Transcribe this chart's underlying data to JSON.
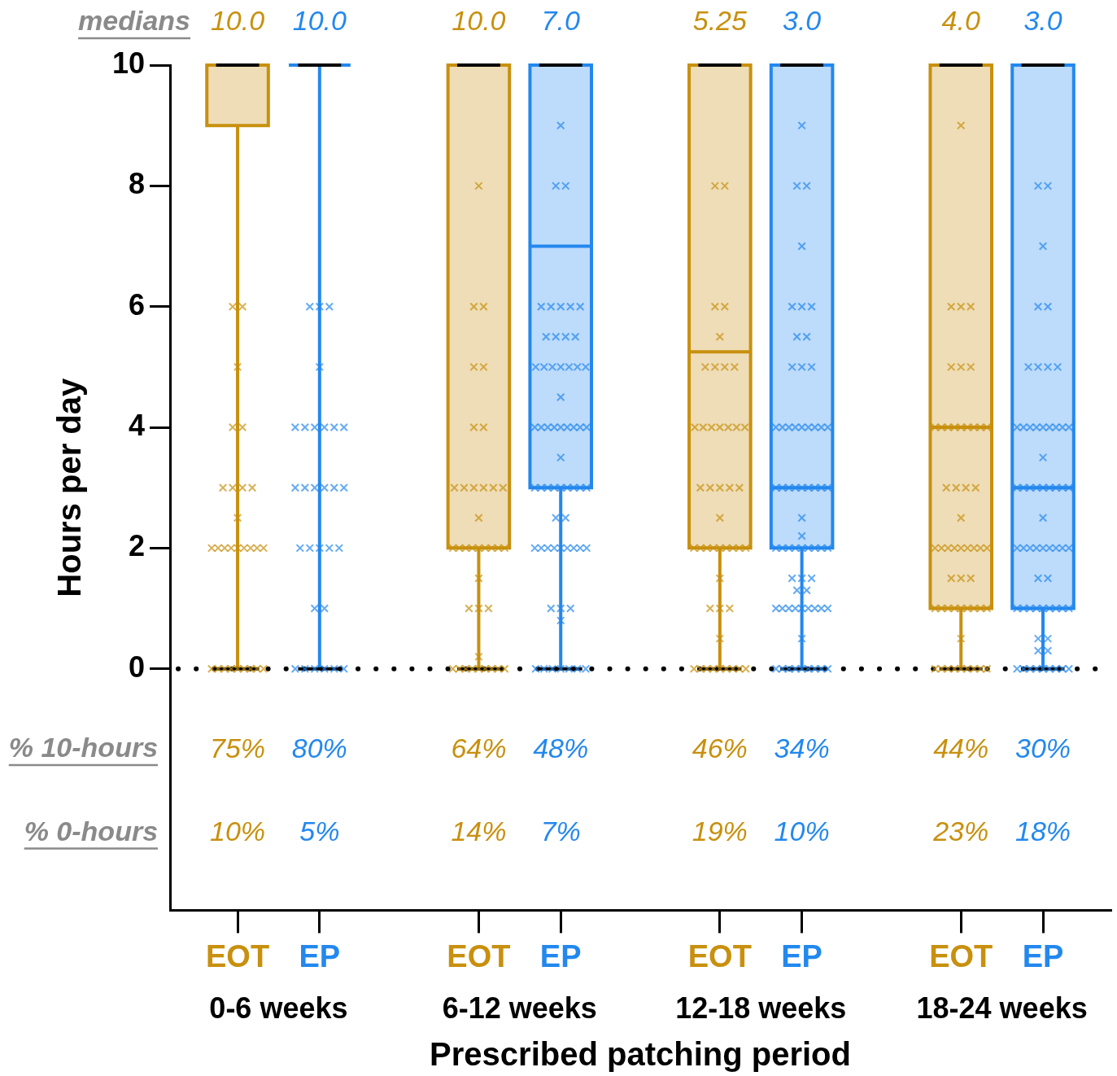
{
  "chart_data": {
    "type": "box",
    "xlabel": "Prescribed patching period",
    "ylabel": "Hours per day",
    "categories": [
      "0-6 weeks",
      "6-12 weeks",
      "12-18 weeks",
      "18-24 weeks"
    ],
    "ylim": [
      -4,
      10
    ],
    "yticks": [
      0,
      2,
      4,
      6,
      8,
      10
    ],
    "marker": "cross",
    "ref_lines": [
      {
        "axis": "y",
        "value": 0,
        "line_style": "dotted",
        "color": "#000000"
      }
    ],
    "series": [
      {
        "name": "EOT",
        "color": "#c8900e",
        "value_labels": [
          "10.0",
          "10.0",
          "5.25",
          "4.0"
        ],
        "boxes": [
          {
            "low": 0,
            "q1": 9,
            "median": 10,
            "q3": 10,
            "high": 10,
            "outliers": [
              6,
              6,
              5,
              4,
              4,
              3,
              3,
              3,
              3,
              2.5,
              2,
              2,
              2,
              2,
              2,
              2,
              2,
              2,
              2,
              0,
              0,
              0,
              0,
              0,
              0,
              0,
              0,
              0
            ]
          },
          {
            "low": 0,
            "q1": 2,
            "median": 10,
            "q3": 10,
            "high": 10,
            "outliers": [
              8,
              6,
              6,
              5,
              5,
              4,
              4,
              3,
              3,
              3,
              3,
              3,
              3,
              2.5,
              2,
              2,
              2,
              2,
              2,
              2,
              2,
              2,
              2,
              1.5,
              1,
              1,
              1,
              0.2,
              0,
              0,
              0,
              0,
              0,
              0,
              0,
              0,
              0
            ]
          },
          {
            "low": 0,
            "q1": 2,
            "median": 5.25,
            "q3": 10,
            "high": 10,
            "outliers": [
              8,
              8,
              6,
              6,
              5.5,
              5,
              5,
              5,
              5,
              4,
              4,
              4,
              4,
              4,
              4,
              4,
              3,
              3,
              3,
              3,
              3,
              2.5,
              2,
              2,
              2,
              2,
              2,
              2,
              2,
              2,
              2,
              1.5,
              1,
              1,
              1,
              0.5,
              0,
              0,
              0,
              0,
              0,
              0,
              0,
              0,
              0
            ]
          },
          {
            "low": 0,
            "q1": 1,
            "median": 4,
            "q3": 10,
            "high": 10,
            "outliers": [
              9,
              6,
              6,
              6,
              5,
              5,
              5,
              4,
              4,
              4,
              4,
              4,
              4,
              4,
              4,
              4,
              3,
              3,
              3,
              3,
              2.5,
              2,
              2,
              2,
              2,
              2,
              2,
              2,
              2,
              2,
              1.5,
              1.5,
              1.5,
              1,
              1,
              1,
              1,
              1,
              1,
              1,
              1,
              1,
              0.5,
              0,
              0,
              0,
              0,
              0,
              0,
              0,
              0,
              0
            ]
          }
        ]
      },
      {
        "name": "EP",
        "color": "#2388ee",
        "value_labels": [
          "10.0",
          "7.0",
          "3.0",
          "3.0"
        ],
        "boxes": [
          {
            "low": 0,
            "q1": 10,
            "median": 10,
            "q3": 10,
            "high": 10,
            "outliers": [
              6,
              6,
              6,
              5,
              4,
              4,
              4,
              4,
              4,
              4,
              3,
              3,
              3,
              3,
              3,
              3,
              2,
              2,
              2,
              2,
              2,
              1,
              1,
              0,
              0,
              0,
              0,
              0,
              0
            ]
          },
          {
            "low": 0,
            "q1": 3,
            "median": 7,
            "q3": 10,
            "high": 10,
            "outliers": [
              9,
              8,
              8,
              6,
              6,
              6,
              6,
              6,
              5.5,
              5.5,
              5.5,
              5.5,
              5,
              5,
              5,
              5,
              5,
              5,
              5,
              4.5,
              4,
              4,
              4,
              4,
              4,
              4,
              4,
              4,
              4,
              3.5,
              3,
              3,
              3,
              3,
              3,
              3,
              3,
              3,
              3,
              2.5,
              2.5,
              2,
              2,
              2,
              2,
              2,
              2,
              2,
              2,
              2,
              1,
              1,
              1,
              0.8,
              0,
              0,
              0,
              0,
              0,
              0,
              0
            ]
          },
          {
            "low": 0,
            "q1": 2,
            "median": 3,
            "q3": 10,
            "high": 10,
            "outliers": [
              9,
              8,
              8,
              7,
              6,
              6,
              6,
              5.5,
              5.5,
              5,
              5,
              5,
              4,
              4,
              4,
              4,
              4,
              4,
              4,
              4,
              4,
              3,
              3,
              3,
              3,
              3,
              3,
              3,
              3,
              3,
              2.5,
              2.2,
              2,
              2,
              2,
              2,
              2,
              2,
              2,
              2,
              2,
              1.5,
              1.5,
              1.5,
              1.3,
              1.3,
              1,
              1,
              1,
              1,
              1,
              1,
              1,
              1,
              1,
              0.5,
              0,
              0,
              0,
              0,
              0,
              0,
              0,
              0,
              0
            ]
          },
          {
            "low": 0,
            "q1": 1,
            "median": 3,
            "q3": 10,
            "high": 10,
            "outliers": [
              8,
              8,
              7,
              6,
              6,
              5,
              5,
              5,
              5,
              4,
              4,
              4,
              4,
              4,
              4,
              4,
              4,
              4,
              3.5,
              3,
              3,
              3,
              3,
              3,
              3,
              3,
              3,
              3,
              2.5,
              2,
              2,
              2,
              2,
              2,
              2,
              2,
              2,
              2,
              1.5,
              1.5,
              1,
              1,
              1,
              1,
              1,
              1,
              1,
              1,
              1,
              0.5,
              0.5,
              0.3,
              0.3,
              0,
              0,
              0,
              0,
              0,
              0,
              0,
              0,
              0
            ]
          }
        ]
      }
    ],
    "annotations": [
      "medians",
      "% 10-hours",
      "75%",
      "80%",
      "64%",
      "48%",
      "46%",
      "34%",
      "44%",
      "30%",
      "% 0-hours",
      "10%",
      "5%",
      "14%",
      "7%",
      "19%",
      "10%",
      "23%",
      "18%"
    ]
  }
}
